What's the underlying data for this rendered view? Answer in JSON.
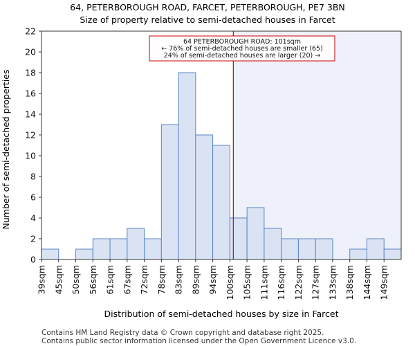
{
  "chart_data": {
    "type": "bar",
    "title": "64, PETERBOROUGH ROAD, FARCET, PETERBOROUGH, PE7 3BN",
    "subtitle": "Size of property relative to semi-detached houses in Farcet",
    "xlabel": "Distribution of semi-detached houses by size in Farcet",
    "ylabel": "Number of semi-detached properties",
    "ylim": [
      0,
      22
    ],
    "yticks": [
      0,
      2,
      4,
      6,
      8,
      10,
      12,
      14,
      16,
      18,
      20,
      22
    ],
    "bin_edges": [
      39,
      45,
      50,
      56,
      61,
      67,
      72,
      78,
      83,
      89,
      94,
      100,
      105,
      111,
      116,
      122,
      127,
      133,
      138,
      144,
      149,
      155
    ],
    "categories": [
      "39sqm",
      "45sqm",
      "50sqm",
      "56sqm",
      "61sqm",
      "67sqm",
      "72sqm",
      "78sqm",
      "83sqm",
      "89sqm",
      "94sqm",
      "100sqm",
      "105sqm",
      "111sqm",
      "116sqm",
      "122sqm",
      "127sqm",
      "133sqm",
      "138sqm",
      "144sqm",
      "149sqm"
    ],
    "values": [
      1,
      0,
      1,
      2,
      2,
      3,
      2,
      13,
      18,
      12,
      11,
      4,
      5,
      3,
      2,
      2,
      2,
      0,
      1,
      2,
      1
    ],
    "marker": {
      "value": 101,
      "color": "#cc0000",
      "label_lines": [
        "64 PETERBOROUGH ROAD: 101sqm",
        "← 76% of semi-detached houses are smaller (65)",
        "24% of semi-detached houses are larger (20) →"
      ]
    },
    "colors": {
      "bar_fill": "#dae3f3",
      "bar_stroke": "#5a84c4",
      "shade": "#eef1fa"
    },
    "grid": false
  },
  "footer": {
    "line1": "Contains HM Land Registry data © Crown copyright and database right 2025.",
    "line2": "Contains public sector information licensed under the Open Government Licence v3.0."
  }
}
